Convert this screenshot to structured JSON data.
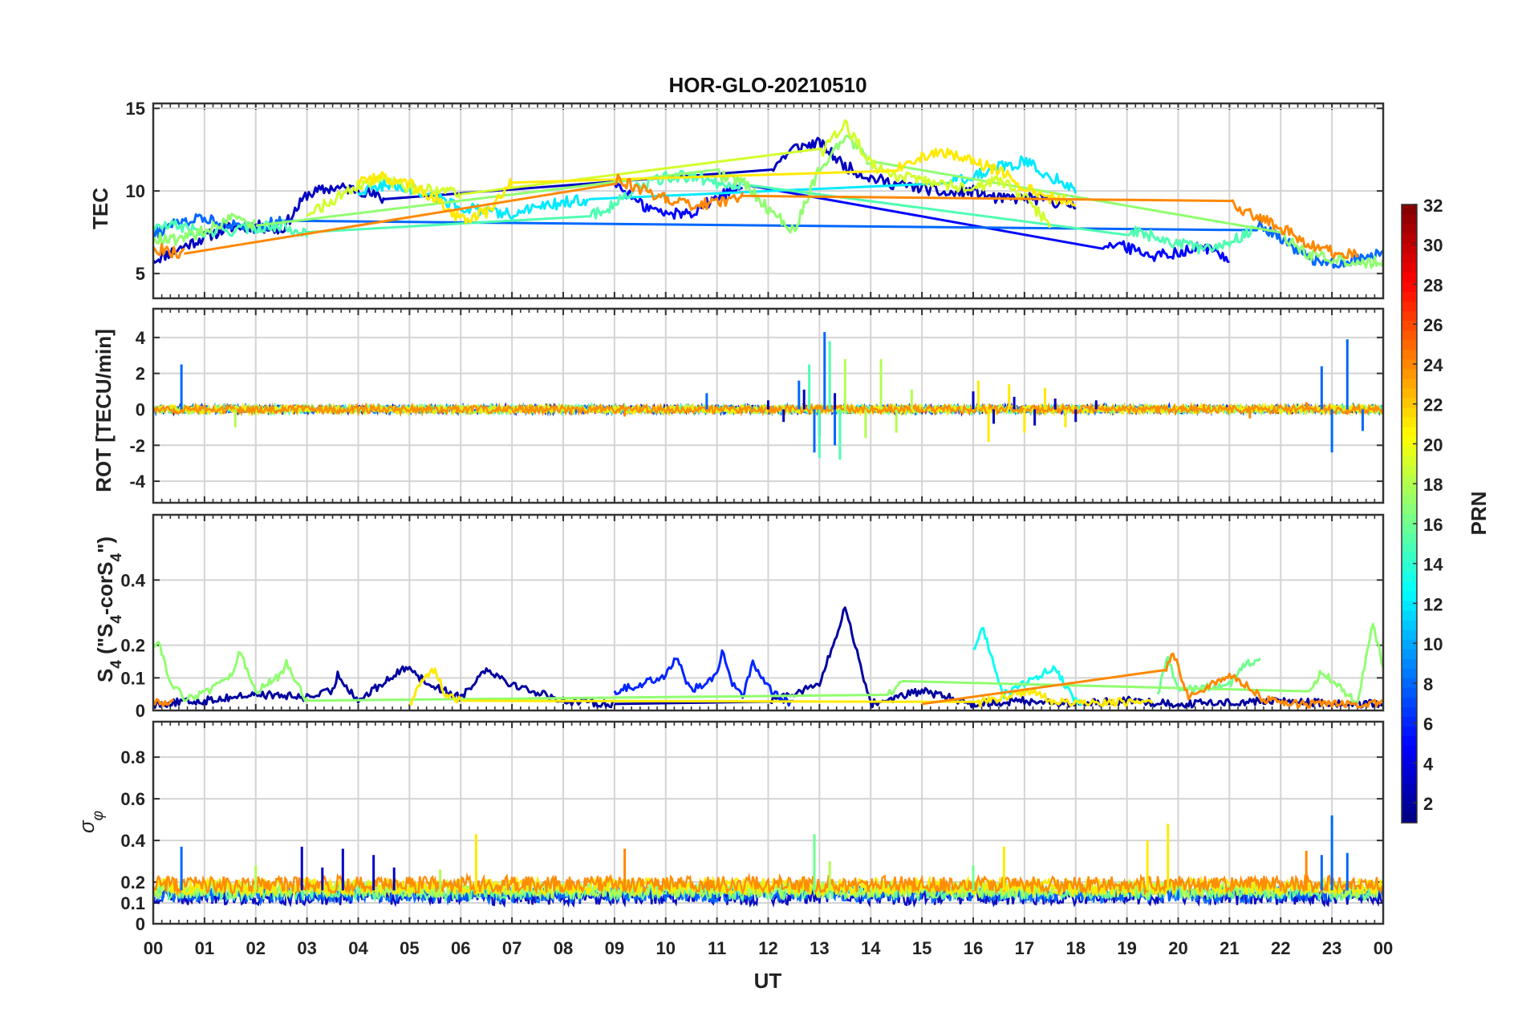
{
  "chart_data": {
    "type": "line",
    "title": "HOR-GLO-20210510",
    "xlabel": "UT",
    "x_ticks": [
      "00",
      "01",
      "02",
      "03",
      "04",
      "05",
      "06",
      "07",
      "08",
      "09",
      "10",
      "11",
      "12",
      "13",
      "14",
      "15",
      "16",
      "17",
      "18",
      "19",
      "20",
      "21",
      "22",
      "23",
      "00"
    ],
    "xlim": [
      0,
      24
    ],
    "grid": true,
    "panels": [
      {
        "id": "tec",
        "ylabel": "TEC",
        "ylim": [
          3.5,
          15.3
        ],
        "yticks": [
          "5",
          "10",
          "15"
        ],
        "series": [
          {
            "name": "PRN 3",
            "prn": 3,
            "x": [
              0,
              0.5,
              1,
              1.5,
              2,
              2.5,
              3,
              3.5,
              4,
              4.5,
              12,
              12.5,
              13,
              13.5,
              14,
              14.5,
              15,
              15.5,
              16,
              16.5,
              17,
              17.5,
              18
            ],
            "y": [
              5.8,
              6.5,
              7.2,
              7.8,
              7.9,
              7.6,
              9.8,
              10.2,
              10.1,
              9.5,
              11.2,
              12.6,
              12.9,
              11.5,
              10.8,
              10.4,
              10.2,
              9.8,
              10.0,
              9.5,
              9.6,
              9.4,
              9.1
            ]
          },
          {
            "name": "PRN 5",
            "prn": 5,
            "x": [
              9,
              9.5,
              10,
              10.5,
              11,
              11.5,
              18.5,
              19,
              19.5,
              20,
              20.5,
              21
            ],
            "y": [
              10.5,
              9.2,
              8.6,
              8.7,
              9.6,
              10.4,
              6.8,
              6.6,
              6.1,
              6.3,
              6.6,
              5.9
            ]
          },
          {
            "name": "PRN 8",
            "prn": 8,
            "x": [
              0,
              0.5,
              1,
              1.5,
              2,
              2.5,
              21.5,
              22,
              22.5,
              23,
              23.5,
              24
            ],
            "y": [
              7.4,
              8.1,
              8.3,
              8.0,
              7.8,
              8.2,
              8.0,
              7.2,
              6.0,
              5.6,
              5.9,
              6.2
            ]
          },
          {
            "name": "PRN 12",
            "prn": 12,
            "x": [
              4,
              4.5,
              5,
              5.5,
              6,
              6.5,
              7,
              7.5,
              8,
              8.5,
              15.5,
              16,
              16.5,
              17,
              17.5,
              18
            ],
            "y": [
              9.9,
              10.4,
              10.2,
              9.6,
              9.1,
              8.7,
              8.6,
              9.0,
              9.3,
              9.5,
              10.6,
              10.9,
              11.4,
              11.8,
              10.9,
              10.1
            ]
          },
          {
            "name": "PRN 15",
            "prn": 15,
            "x": [
              0,
              0.5,
              1,
              1.5,
              2,
              2.5,
              3,
              8.5,
              9,
              9.5,
              10,
              10.5,
              11,
              11.5,
              19,
              19.5,
              20,
              20.5,
              21,
              21.5
            ],
            "y": [
              7.8,
              7.9,
              7.4,
              7.6,
              7.8,
              7.9,
              7.5,
              8.4,
              9.2,
              10.3,
              10.8,
              10.9,
              10.5,
              10.4,
              7.6,
              7.3,
              6.8,
              6.5,
              6.9,
              7.7
            ]
          },
          {
            "name": "PRN 17",
            "prn": 17,
            "x": [
              0,
              0.5,
              1,
              1.5,
              2,
              11,
              11.5,
              12,
              12.5,
              13,
              13.5,
              14,
              22,
              22.5,
              23,
              23.5,
              24
            ],
            "y": [
              7.2,
              7.0,
              7.6,
              8.3,
              7.9,
              11.0,
              10.6,
              8.9,
              7.6,
              11.4,
              13.2,
              11.8,
              7.4,
              6.2,
              5.9,
              5.6,
              5.8
            ]
          },
          {
            "name": "PRN 19",
            "prn": 19,
            "x": [
              3,
              3.5,
              4,
              4.5,
              5,
              5.5,
              6,
              13,
              13.5,
              14,
              14.5,
              15,
              15.5,
              16,
              16.5,
              17,
              17.5
            ],
            "y": [
              8.6,
              9.4,
              10.3,
              10.7,
              10.2,
              10.0,
              9.8,
              12.1,
              14.1,
              11.6,
              10.9,
              10.6,
              10.3,
              10.1,
              10.7,
              9.6,
              7.9
            ]
          },
          {
            "name": "PRN 21",
            "prn": 21,
            "x": [
              4,
              4.5,
              5,
              5.5,
              6,
              6.5,
              7,
              14.5,
              15,
              15.5,
              16,
              16.5,
              17,
              17.5,
              18
            ],
            "y": [
              10.6,
              10.9,
              10.4,
              9.6,
              8.3,
              8.7,
              10.5,
              11.4,
              12.1,
              12.4,
              11.8,
              11.2,
              10.2,
              9.6,
              9.3
            ]
          },
          {
            "name": "PRN 24",
            "prn": 24,
            "x": [
              0,
              0.3,
              0.6,
              9,
              9.5,
              10,
              10.5,
              11,
              11.5,
              21,
              21.5,
              22,
              22.5,
              23,
              23.5
            ],
            "y": [
              6.6,
              6.3,
              6.2,
              10.8,
              10.1,
              9.5,
              9.2,
              9.3,
              9.7,
              9.2,
              8.5,
              7.8,
              6.9,
              6.3,
              6.1
            ]
          }
        ]
      },
      {
        "id": "rot",
        "ylabel": "ROT [TECU/min]",
        "ylim": [
          -5.2,
          5.6
        ],
        "yticks": [
          "-4",
          "-2",
          "0",
          "2",
          "4"
        ],
        "spikes": [
          {
            "prn": 3,
            "x": [
              12.0,
              12.3,
              12.7,
              13.0,
              13.3,
              16.0,
              16.4,
              16.8,
              17.2,
              17.6,
              18.0,
              18.4
            ],
            "y": [
              0.5,
              -0.7,
              1.1,
              -1.5,
              0.9,
              1.0,
              -0.8,
              0.7,
              -0.9,
              0.6,
              -0.7,
              0.5
            ]
          },
          {
            "prn": 8,
            "x": [
              0.55,
              10.8,
              12.6,
              12.9,
              13.1,
              13.3,
              22.8,
              23.0,
              23.3,
              23.6
            ],
            "y": [
              2.5,
              0.9,
              1.6,
              -2.4,
              4.3,
              -2.0,
              2.4,
              -2.4,
              3.9,
              -1.2
            ]
          },
          {
            "prn": 15,
            "x": [
              12.8,
              13.0,
              13.2,
              13.4
            ],
            "y": [
              2.5,
              -2.7,
              3.8,
              -2.8
            ]
          },
          {
            "prn": 18,
            "x": [
              1.6,
              13.5,
              13.9,
              14.2,
              14.5,
              14.8
            ],
            "y": [
              -1.0,
              2.8,
              -1.6,
              2.8,
              -1.3,
              1.1
            ]
          },
          {
            "prn": 21,
            "x": [
              16.1,
              16.3,
              16.7,
              17.0,
              17.4,
              17.8
            ],
            "y": [
              1.6,
              -1.8,
              1.4,
              -1.3,
              1.2,
              -1.0
            ]
          },
          {
            "prn": 24,
            "x": [
              9.2,
              20.5,
              21.4,
              22.5,
              23.3
            ],
            "y": [
              -0.4,
              0.3,
              -0.5,
              0.4,
              -0.3
            ]
          }
        ]
      },
      {
        "id": "s4",
        "ylabel": "S4 (\"S4-corS4\")",
        "ylim": [
          0,
          0.6
        ],
        "yticks": [
          "0",
          "0.1",
          "0.2",
          "0.4"
        ],
        "series": [
          {
            "name": "PRN 2",
            "prn": 2,
            "x": [
              0,
              1,
              2,
              3,
              3.5,
              3.6,
              3.8,
              4,
              5,
              5.2,
              5.4,
              6,
              6.5,
              7,
              8,
              9,
              12,
              13,
              13.2,
              13.4,
              13.5,
              14,
              15,
              16,
              17,
              18,
              19,
              20,
              22,
              23,
              24
            ],
            "y": [
              0.02,
              0.03,
              0.05,
              0.04,
              0.06,
              0.11,
              0.07,
              0.03,
              0.14,
              0.1,
              0.08,
              0.04,
              0.13,
              0.08,
              0.03,
              0.02,
              0.03,
              0.08,
              0.17,
              0.26,
              0.32,
              0.02,
              0.06,
              0.02,
              0.03,
              0.02,
              0.03,
              0.02,
              0.03,
              0.02,
              0.02
            ]
          },
          {
            "name": "PRN 6",
            "prn": 6,
            "x": [
              9,
              9.5,
              10,
              10.2,
              10.5,
              11,
              11.1,
              11.3,
              11.5,
              11.7,
              12,
              12.3,
              12.5
            ],
            "y": [
              0.06,
              0.08,
              0.11,
              0.16,
              0.06,
              0.11,
              0.19,
              0.08,
              0.04,
              0.15,
              0.07,
              0.03,
              0.02
            ]
          },
          {
            "name": "PRN 13",
            "prn": 13,
            "x": [
              16,
              16.2,
              16.4,
              16.6,
              17,
              17.3,
              17.6,
              17.9,
              18.1
            ],
            "y": [
              0.19,
              0.25,
              0.14,
              0.05,
              0.08,
              0.11,
              0.13,
              0.05,
              0.02
            ]
          },
          {
            "name": "PRN 16",
            "prn": 16,
            "x": [
              19.6,
              19.8,
              20,
              21,
              21.3,
              21.6
            ],
            "y": [
              0.05,
              0.17,
              0.06,
              0.08,
              0.14,
              0.16
            ]
          },
          {
            "name": "PRN 17",
            "prn": 17,
            "x": [
              0,
              0.1,
              0.3,
              0.6,
              1,
              1.5,
              1.7,
              2,
              2.5,
              2.6,
              3,
              14.3,
              14.6,
              22.5,
              22.8,
              23.5,
              23.8,
              24
            ],
            "y": [
              0.2,
              0.22,
              0.09,
              0.04,
              0.05,
              0.1,
              0.18,
              0.06,
              0.11,
              0.15,
              0.03,
              0.04,
              0.09,
              0.04,
              0.12,
              0.02,
              0.27,
              0.13
            ]
          },
          {
            "name": "PRN 21",
            "prn": 21,
            "x": [
              5,
              5.3,
              5.5,
              5.7,
              6,
              16,
              17.2,
              17.5,
              18,
              19.5
            ],
            "y": [
              0.02,
              0.1,
              0.13,
              0.05,
              0.03,
              0.02,
              0.06,
              0.03,
              0.02,
              0.03
            ]
          },
          {
            "name": "PRN 24",
            "prn": 24,
            "x": [
              0,
              0.2,
              0.4,
              6,
              9,
              12,
              15,
              19.7,
              19.9,
              20.2,
              21,
              21.2,
              21.4,
              21.6,
              22,
              23,
              24
            ],
            "y": [
              0.03,
              0.02,
              0.02,
              0.02,
              0.02,
              0.03,
              0.02,
              0.1,
              0.18,
              0.04,
              0.11,
              0.09,
              0.07,
              0.04,
              0.02,
              0.02,
              0.02
            ]
          }
        ]
      },
      {
        "id": "sigma_phi",
        "ylabel": "σ φ",
        "ylim": [
          0,
          0.97
        ],
        "yticks": [
          "0",
          "0.1",
          "0.2",
          "0.4",
          "0.6",
          "0.8"
        ],
        "spikes": [
          {
            "prn": 3,
            "x": [
              2.9,
              3.3,
              3.7,
              4.3,
              4.7
            ],
            "y": [
              0.37,
              0.27,
              0.36,
              0.33,
              0.27
            ]
          },
          {
            "prn": 8,
            "x": [
              0.55,
              22.8,
              23.0,
              23.3
            ],
            "y": [
              0.37,
              0.33,
              0.52,
              0.34
            ]
          },
          {
            "prn": 16,
            "x": [
              12.9,
              16.0
            ],
            "y": [
              0.43,
              0.28
            ]
          },
          {
            "prn": 18,
            "x": [
              2.0,
              5.6,
              13.2
            ],
            "y": [
              0.28,
              0.26,
              0.3
            ]
          },
          {
            "prn": 21,
            "x": [
              6.3,
              16.6,
              19.4,
              19.8
            ],
            "y": [
              0.43,
              0.37,
              0.4,
              0.48
            ]
          },
          {
            "prn": 24,
            "x": [
              9.2,
              22.5
            ],
            "y": [
              0.36,
              0.35
            ]
          }
        ]
      }
    ],
    "colorbar": {
      "label": "PRN",
      "ticks": [
        "2",
        "4",
        "6",
        "8",
        "10",
        "12",
        "14",
        "16",
        "18",
        "20",
        "22",
        "24",
        "26",
        "28",
        "30",
        "32"
      ],
      "range": [
        1,
        32
      ],
      "colormap": "jet"
    }
  }
}
